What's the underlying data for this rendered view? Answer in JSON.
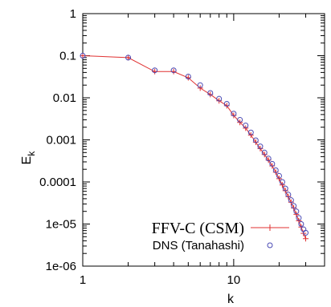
{
  "chart_data": {
    "type": "line",
    "title": "",
    "xlabel": "k",
    "ylabel": "E",
    "ylabel_subscript": "k",
    "x_scale": "log",
    "y_scale": "log",
    "xlim": [
      1,
      40
    ],
    "ylim": [
      1e-06,
      1
    ],
    "x_ticks": [
      {
        "value": 1,
        "label": "1"
      },
      {
        "value": 10,
        "label": "10"
      }
    ],
    "y_ticks": [
      {
        "value": 1,
        "label": "1"
      },
      {
        "value": 0.1,
        "label": "0.1"
      },
      {
        "value": 0.01,
        "label": "0.01"
      },
      {
        "value": 0.001,
        "label": "0.001"
      },
      {
        "value": 0.0001,
        "label": "0.0001"
      },
      {
        "value": 1e-05,
        "label": "1e-05"
      },
      {
        "value": 1e-06,
        "label": "1e-06"
      }
    ],
    "legend_position": "bottom-left",
    "series": [
      {
        "name": "FFV-C (CSM)",
        "color": "#e03030",
        "style": "line-plus",
        "x": [
          1,
          2,
          3,
          4,
          5,
          6,
          7,
          8,
          9,
          10,
          11,
          12,
          13,
          14,
          15,
          16,
          17,
          18,
          19,
          20,
          21,
          22,
          23,
          24,
          25,
          26,
          27,
          28,
          29,
          30
        ],
        "y": [
          0.1,
          0.09,
          0.042,
          0.042,
          0.03,
          0.017,
          0.012,
          0.0085,
          0.0065,
          0.0038,
          0.0026,
          0.0019,
          0.0013,
          0.00088,
          0.00062,
          0.00045,
          0.00033,
          0.00024,
          0.00017,
          0.00012,
          8.5e-05,
          6.2e-05,
          4.5e-05,
          3.3e-05,
          2.4e-05,
          1.7e-05,
          1.2e-05,
          8.5e-06,
          6e-06,
          4.5e-06
        ]
      },
      {
        "name": "DNS (Tanahashi)",
        "color": "#4a4ab4",
        "style": "circle",
        "x": [
          1,
          2,
          3,
          4,
          5,
          6,
          7,
          8,
          9,
          10,
          11,
          12,
          13,
          14,
          15,
          16,
          17,
          18,
          19,
          20,
          21,
          22,
          23,
          24,
          25,
          26,
          27,
          28,
          29,
          30
        ],
        "y": [
          0.1,
          0.09,
          0.045,
          0.045,
          0.032,
          0.02,
          0.013,
          0.0095,
          0.0072,
          0.0042,
          0.003,
          0.0022,
          0.0015,
          0.00098,
          0.0007,
          0.0005,
          0.00036,
          0.00027,
          0.00019,
          0.00014,
          0.0001,
          7e-05,
          5e-05,
          3.7e-05,
          2.7e-05,
          2e-05,
          1.4e-05,
          1e-05,
          7.5e-06,
          6.2e-06
        ]
      }
    ]
  }
}
